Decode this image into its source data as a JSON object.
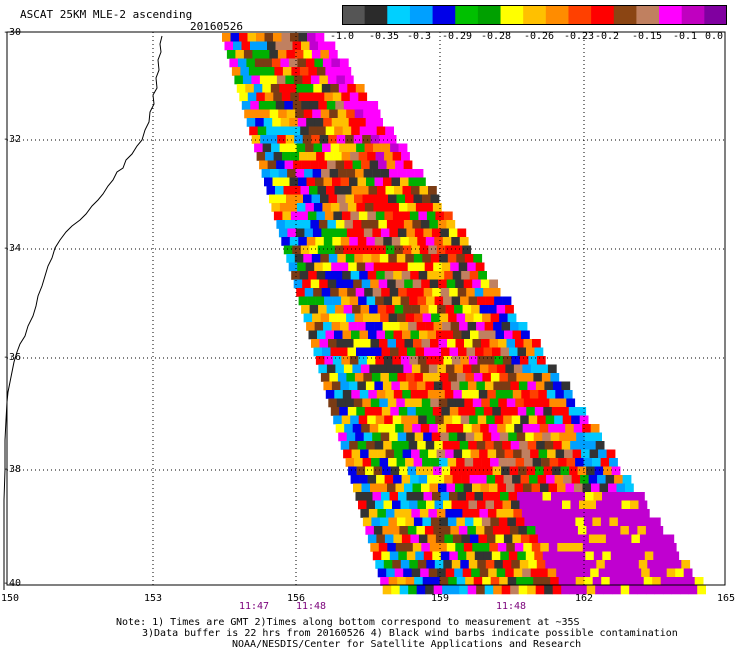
{
  "header": {
    "title": "ASCAT 25KM MLE-2 ascending",
    "date": "20160526"
  },
  "legend": {
    "labels": [
      "-1.0",
      "-0.35",
      "-0.3",
      "-0.29",
      "-0.28",
      "-0.26",
      "-0.23",
      "-0.2",
      "-0.15",
      "-0.1",
      "0.0"
    ],
    "colors": [
      "#555555",
      "#2b2b2b",
      "#00d0ff",
      "#00a0ff",
      "#0000e8",
      "#00c000",
      "#00a000",
      "#ffff00",
      "#ffc000",
      "#ff8c00",
      "#ff4000",
      "#ff0000",
      "#8b4513",
      "#c08060",
      "#ff00ff",
      "#c000c0",
      "#8000a0"
    ]
  },
  "map": {
    "lat_labels": [
      "-30",
      "-32",
      "-34",
      "-36",
      "-38",
      "-40"
    ],
    "lon_labels": [
      "150",
      "153",
      "156",
      "159",
      "162",
      "165"
    ],
    "time_labels": [
      "11:47",
      "11:48",
      "11:48"
    ]
  },
  "notes": {
    "line1": "Note: 1) Times are GMT 2)Times along bottom correspond to measurement at ~35S",
    "line2": "3)Data buffer is 22 hrs from 20160526 4) Black wind barbs indicate possible contamination",
    "line3": "NOAA/NESDIS/Center for Satellite Applications and Research"
  }
}
